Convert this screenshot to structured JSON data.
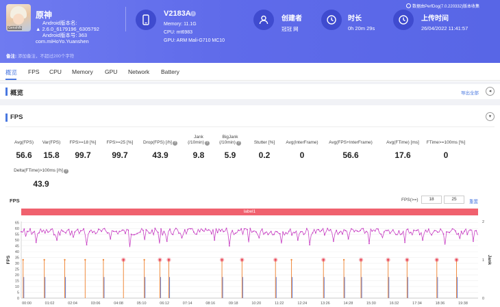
{
  "app": {
    "name": "原神",
    "icon_label": "GenshiN",
    "android_name_label": "Android版本名:",
    "version_line": "2.6.0_6179196_6305792",
    "android_code_line": "Android版本号: 363",
    "package": "com.miHoYo.Yuanshen"
  },
  "device": {
    "name": "V2183A",
    "info_icon": "i",
    "memory": "Memory: 11.1G",
    "cpu": "CPU: mt6983",
    "gpu": "GPU: ARM Mali-G710 MC10"
  },
  "creator": {
    "title": "创建者",
    "value": "冠冠 网"
  },
  "duration": {
    "title": "时长",
    "value": "0h 20m 29s"
  },
  "upload": {
    "title": "上传时间",
    "value": "26/04/2022 11:41:57"
  },
  "perfdog_text": "数据由PerfDog(7.0.220332)版本收集",
  "remark": {
    "label": "备注:",
    "placeholder": "添加备注，不超过200个字符"
  },
  "tabs": [
    "概览",
    "FPS",
    "CPU",
    "Memory",
    "GPU",
    "Network",
    "Battery"
  ],
  "overview": {
    "title": "概览",
    "export": "导出全部",
    "collapse_icon": "◂"
  },
  "fps_section": {
    "title": "FPS",
    "collapse_icon": "▾",
    "help_icon": "?",
    "metrics": [
      {
        "label": "Avg(FPS)",
        "value": "56.6",
        "help": false
      },
      {
        "label": "Var(FPS)",
        "value": "15.8",
        "help": false
      },
      {
        "label": "FPS>=18 [%]",
        "value": "99.7",
        "help": false
      },
      {
        "label": "FPS>=25 [%]",
        "value": "99.7",
        "help": false
      },
      {
        "label": "Drop(FPS) [/h]",
        "value": "43.9",
        "help": true
      },
      {
        "label": "Jank\n(/10min)",
        "value": "9.8",
        "help": true
      },
      {
        "label": "BigJank\n(/10min)",
        "value": "5.9",
        "help": true
      },
      {
        "label": "Stutter [%]",
        "value": "0.2",
        "help": false
      },
      {
        "label": "Avg(InterFrame)",
        "value": "0",
        "help": false
      },
      {
        "label": "Avg(FPS+InterFrame)",
        "value": "56.6",
        "help": false
      },
      {
        "label": "Avg(FTime) [ms]",
        "value": "17.6",
        "help": false
      },
      {
        "label": "FTime>=100ms [%]",
        "value": "0",
        "help": false
      },
      {
        "label": "Delta(FTime)>100ms [/h]",
        "value": "43.9",
        "help": true
      }
    ]
  },
  "chart_header": {
    "title": "FPS",
    "range_label": "FPS(>=)",
    "range_min": "18",
    "range_max": "25",
    "reset": "重置",
    "band_label": "label1"
  },
  "colors": {
    "header": "#5f6bea",
    "accent": "#4a78e0",
    "fps_line": "#c73ec3",
    "jank": "#f08a3c",
    "bigjank_dot": "#e94a5a",
    "stutter_bar": "#6f86d6",
    "band": "#f0616e"
  },
  "chart_data": {
    "type": "line",
    "title": "FPS",
    "ylabel": "FPS",
    "y2label": "Jank",
    "ylim": [
      0,
      66
    ],
    "y2lim": [
      0,
      2
    ],
    "yticks": [
      0,
      5,
      10,
      15,
      20,
      25,
      30,
      35,
      40,
      45,
      50,
      55,
      60,
      65
    ],
    "y2ticks": [
      0,
      1,
      2
    ],
    "xlim": [
      0,
      1229
    ],
    "x_tick_labels": [
      "00:00",
      "01:02",
      "02:04",
      "03:06",
      "04:08",
      "05:10",
      "06:12",
      "07:14",
      "08:16",
      "09:18",
      "10:20",
      "11:22",
      "12:24",
      "13:26",
      "14:28",
      "15:30",
      "16:32",
      "17:34",
      "18:36",
      "19:38"
    ],
    "fps_baseline": 59,
    "fps_variation": 3,
    "fps_dips": [
      {
        "t": 10,
        "fps": 53
      },
      {
        "t": 40,
        "fps": 48
      },
      {
        "t": 95,
        "fps": 50
      },
      {
        "t": 140,
        "fps": 52
      },
      {
        "t": 175,
        "fps": 46
      },
      {
        "t": 240,
        "fps": 51
      },
      {
        "t": 290,
        "fps": 44
      },
      {
        "t": 330,
        "fps": 50
      },
      {
        "t": 372,
        "fps": 47
      },
      {
        "t": 390,
        "fps": 49
      },
      {
        "t": 430,
        "fps": 52
      },
      {
        "t": 520,
        "fps": 50
      },
      {
        "t": 560,
        "fps": 45
      },
      {
        "t": 610,
        "fps": 48
      },
      {
        "t": 640,
        "fps": 52
      },
      {
        "t": 700,
        "fps": 47
      },
      {
        "t": 745,
        "fps": 50
      },
      {
        "t": 775,
        "fps": 46
      },
      {
        "t": 840,
        "fps": 49
      },
      {
        "t": 880,
        "fps": 51
      },
      {
        "t": 935,
        "fps": 47
      },
      {
        "t": 970,
        "fps": 52
      },
      {
        "t": 1030,
        "fps": 48
      },
      {
        "t": 1080,
        "fps": 50
      },
      {
        "t": 1140,
        "fps": 46
      },
      {
        "t": 1180,
        "fps": 51
      },
      {
        "t": 1215,
        "fps": 49
      }
    ],
    "jank_times": [
      5,
      62,
      117,
      172,
      221,
      275,
      331,
      373,
      397,
      540,
      594,
      684,
      727,
      813,
      868,
      914,
      987,
      1038,
      1118,
      1171
    ],
    "bigjank_times": [
      275,
      373,
      397,
      540,
      594,
      684,
      813,
      914,
      987,
      1038,
      1118,
      1171
    ],
    "stutter_times": [
      5,
      62,
      117,
      221,
      331,
      373,
      397,
      540,
      594,
      684,
      727,
      813,
      868,
      914,
      987,
      1038,
      1118,
      1171
    ]
  }
}
